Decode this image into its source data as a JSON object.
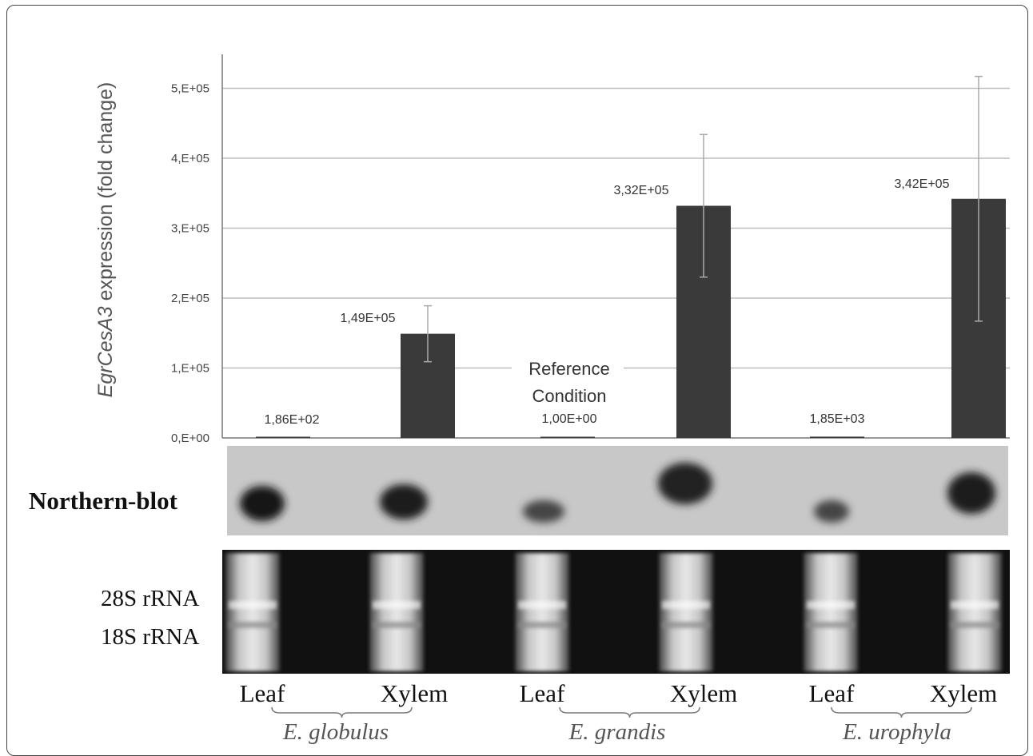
{
  "chart_data": {
    "type": "bar",
    "ylabel_italic": "EgrCesA3",
    "ylabel_rest": " expression (fold change)",
    "yticks": [
      "0,E+00",
      "1,E+05",
      "2,E+05",
      "3,E+05",
      "4,E+05",
      "5,E+05"
    ],
    "ylim": [
      0,
      520000
    ],
    "grid": true,
    "categories": [
      "Leaf",
      "Xylem",
      "Leaf",
      "Xylem",
      "Leaf",
      "Xylem"
    ],
    "values": [
      186,
      149000,
      1,
      332000,
      1850,
      342000
    ],
    "errors": [
      0,
      40000,
      0,
      102000,
      0,
      175000
    ],
    "data_labels": [
      "1,86E+02",
      "1,49E+05",
      "1,00E+00",
      "3,32E+05",
      "1,85E+03",
      "3,42E+05"
    ],
    "groups": [
      "E. globulus",
      "E. grandis",
      "E. urophyla"
    ],
    "annotation": [
      "Reference",
      "Condition"
    ],
    "bar_color": "#3a3a3a"
  },
  "blots": {
    "northern_label": "Northern-blot",
    "rrna_28s": "28S rRNA",
    "rrna_18s": "18S rRNA"
  }
}
